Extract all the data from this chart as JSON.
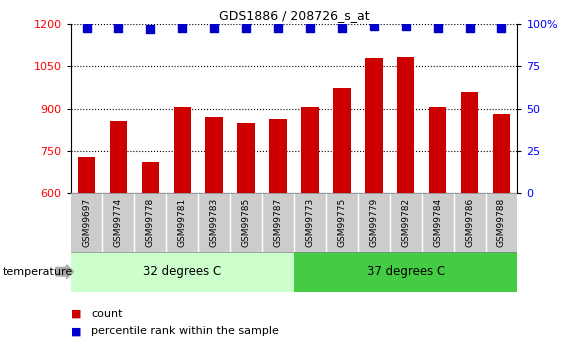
{
  "title": "GDS1886 / 208726_s_at",
  "samples": [
    "GSM99697",
    "GSM99774",
    "GSM99778",
    "GSM99781",
    "GSM99783",
    "GSM99785",
    "GSM99787",
    "GSM99773",
    "GSM99775",
    "GSM99779",
    "GSM99782",
    "GSM99784",
    "GSM99786",
    "GSM99788"
  ],
  "counts": [
    730,
    855,
    710,
    905,
    870,
    850,
    865,
    905,
    975,
    1080,
    1085,
    905,
    960,
    880
  ],
  "percentile_ranks": [
    98,
    98,
    97,
    98,
    98,
    98,
    98,
    98,
    98,
    99,
    99,
    98,
    98,
    98
  ],
  "ylim": [
    600,
    1200
  ],
  "yticks": [
    600,
    750,
    900,
    1050,
    1200
  ],
  "right_ylim": [
    0,
    100
  ],
  "right_yticks": [
    0,
    25,
    50,
    75,
    100
  ],
  "bar_color": "#CC0000",
  "dot_color": "#0000CC",
  "group1_label": "32 degrees C",
  "group2_label": "37 degrees C",
  "group1_count": 7,
  "group2_count": 7,
  "group1_bg": "#CCFFCC",
  "group2_bg": "#44CC44",
  "sample_bg": "#CCCCCC",
  "temperature_label": "temperature",
  "legend_count_label": "count",
  "legend_pct_label": "percentile rank within the sample",
  "bar_width": 0.55,
  "dot_size": 35,
  "grid_color": "#000000",
  "grid_linestyle": "dotted"
}
